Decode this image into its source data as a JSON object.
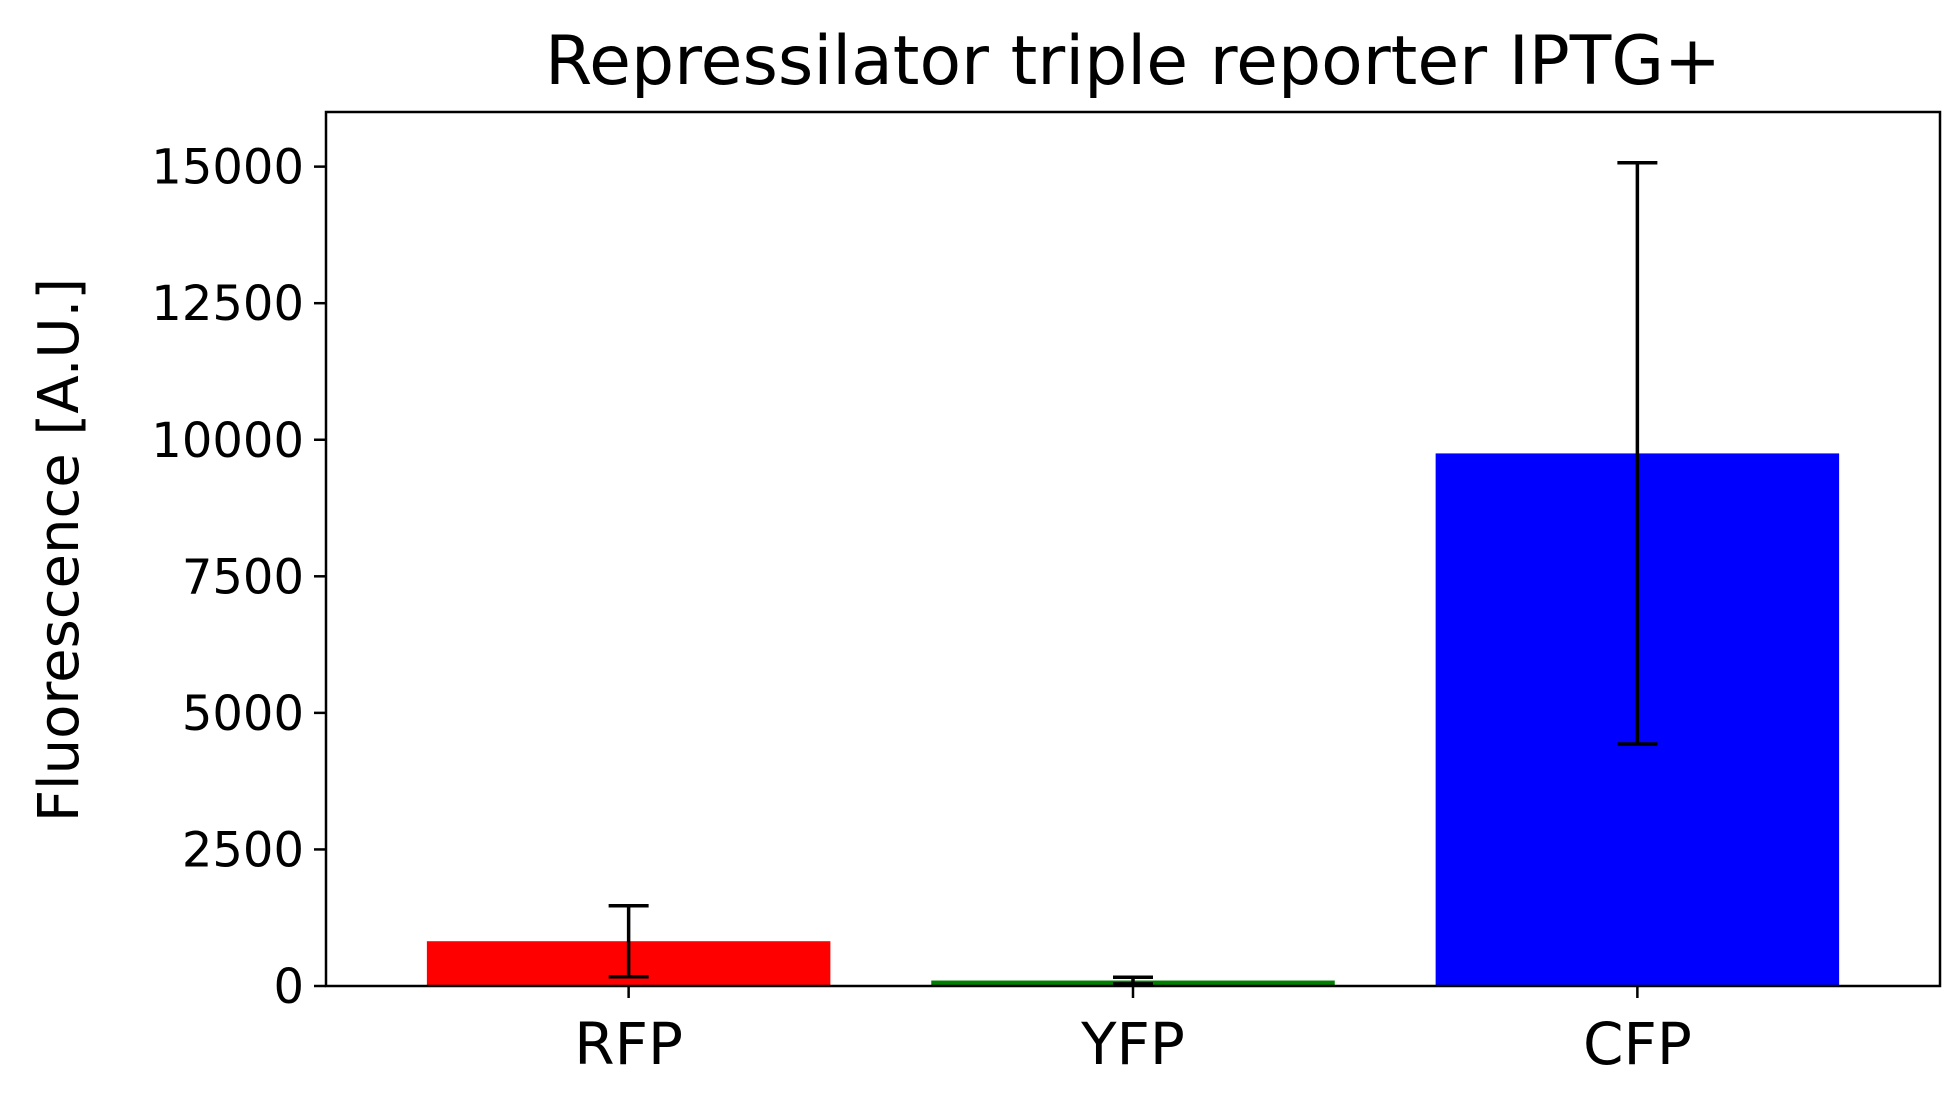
{
  "chart_data": {
    "type": "bar",
    "title": "Repressilator triple reporter IPTG+",
    "xlabel": "",
    "ylabel": "Fluorescence [A.U.]",
    "ylim": [
      0,
      16000
    ],
    "yticks": [
      0,
      2500,
      5000,
      7500,
      10000,
      12500,
      15000
    ],
    "categories": [
      "RFP",
      "YFP",
      "CFP"
    ],
    "values": [
      820,
      100,
      9750
    ],
    "errors": [
      650,
      60,
      5320
    ],
    "colors": [
      "#ff0000",
      "#008000",
      "#0000ff"
    ],
    "grid": false,
    "legend": "none"
  }
}
